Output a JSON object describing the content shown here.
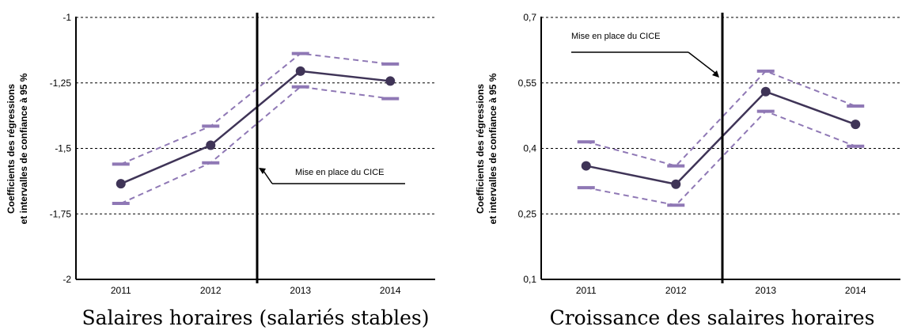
{
  "chart_data": [
    {
      "type": "line",
      "caption": "Salaires horaires (salariés stables)",
      "ylabel_lines": [
        "Coefficients des régressions",
        "et intervalles de confiance à 95 %"
      ],
      "categories": [
        "2011",
        "2012",
        "2013",
        "2014"
      ],
      "ylim": [
        -2,
        -1
      ],
      "yticks": [
        -2,
        -1.75,
        -1.5,
        -1.25,
        -1
      ],
      "ytick_labels": [
        "-2",
        "-1,75",
        "-1,5",
        "-1,25",
        "-1"
      ],
      "grid": true,
      "series": [
        {
          "role": "coefficient",
          "values": [
            -1.635,
            -1.488,
            -1.205,
            -1.243
          ],
          "color": "#3f3457"
        },
        {
          "role": "upper",
          "values": [
            -1.56,
            -1.415,
            -1.138,
            -1.178
          ],
          "color": "#8f78b5"
        },
        {
          "role": "lower",
          "values": [
            -1.71,
            -1.555,
            -1.265,
            -1.31
          ],
          "color": "#8f78b5"
        }
      ],
      "annotation": {
        "text": "Mise en place du CICE",
        "event_between": [
          "2012",
          "2013"
        ]
      }
    },
    {
      "type": "line",
      "caption": "Croissance des salaires horaires",
      "ylabel_lines": [
        "Coefficients des régressions",
        "et intervalles de confiance à 95 %"
      ],
      "categories": [
        "2011",
        "2012",
        "2013",
        "2014"
      ],
      "ylim": [
        0.1,
        0.7
      ],
      "yticks": [
        0.1,
        0.25,
        0.4,
        0.55,
        0.7
      ],
      "ytick_labels": [
        "0,1",
        "0,25",
        "0,4",
        "0,55",
        "0,7"
      ],
      "grid": true,
      "series": [
        {
          "role": "coefficient",
          "values": [
            0.36,
            0.318,
            0.53,
            0.455
          ],
          "color": "#3f3457"
        },
        {
          "role": "upper",
          "values": [
            0.415,
            0.36,
            0.577,
            0.497
          ],
          "color": "#8f78b5"
        },
        {
          "role": "lower",
          "values": [
            0.31,
            0.27,
            0.485,
            0.405
          ],
          "color": "#8f78b5"
        }
      ],
      "annotation": {
        "text": "Mise en place du CICE",
        "event_between": [
          "2012",
          "2013"
        ]
      }
    }
  ]
}
